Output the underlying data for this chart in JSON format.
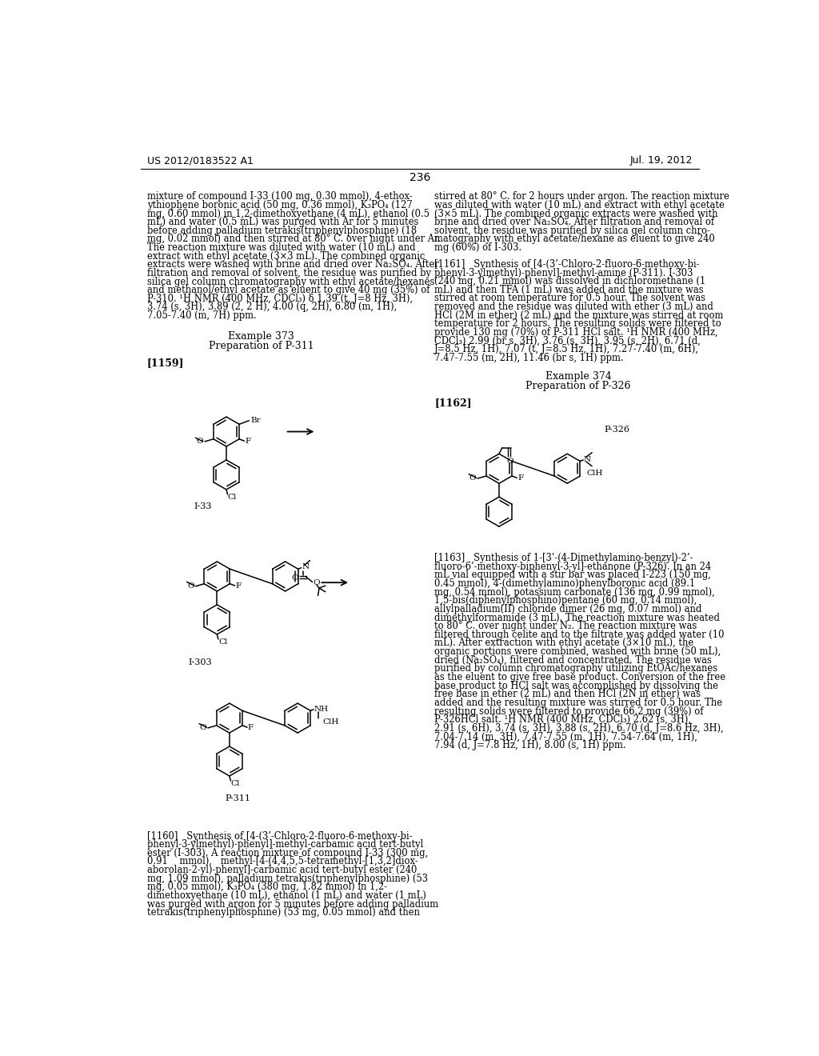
{
  "background_color": "#ffffff",
  "page_number": "236",
  "header_left": "US 2012/0183522 A1",
  "header_right": "Jul. 19, 2012",
  "left_col_text": [
    "mixture of compound I-33 (100 mg, 0.30 mmol), 4-ethox-",
    "ythiophene boronic acid (50 mg, 0.36 mmol), K₃PO₄ (127",
    "mg, 0.60 mmol) in 1,2-dimethoxyethane (4 mL), ethanol (0.5",
    "mL) and water (0.5 mL) was purged with Ar for 5 minutes",
    "before adding palladium tetrakis(triphenylphosphine) (18",
    "mg, 0.02 mmol) and then stirred at 80° C. over night under Ar.",
    "The reaction mixture was diluted with water (10 mL) and",
    "extract with ethyl acetate (3×3 mL). The combined organic",
    "extracts were washed with brine and dried over Na₂SO₄. After",
    "filtration and removal of solvent, the residue was purified by",
    "silica gel column chromatography with ethyl acetate/hexanes",
    "and methanol/ethyl acetate as eluent to give 40 mg (35%) of",
    "P-310. ¹H NMR (400 MHz, CDCl₃) δ 1.39 (t, J=8 Hz, 3H),",
    "3.74 (s, 3H), 3.89 (2, 2 H), 4.00 (q, 2H), 6.80 (m, 1H),",
    "7.05-7.40 (m, 7H) ppm."
  ],
  "example373_header": "Example 373",
  "example373_sub": "Preparation of P-311",
  "para1159": "[1159]",
  "right_col_text": [
    "stirred at 80° C. for 2 hours under argon. The reaction mixture",
    "was diluted with water (10 mL) and extract with ethyl acetate",
    "(3×5 mL). The combined organic extracts were washed with",
    "brine and dried over Na₂SO₄. After filtration and removal of",
    "solvent, the residue was purified by silica gel column chro-",
    "matography with ethyl acetate/hexane as eluent to give 240",
    "mg (60%) of I-303."
  ],
  "para1161_text": [
    "[1161]   Synthesis of [4-(3’-Chloro-2-fluoro-6-methoxy-bi-",
    "phenyl-3-ylmethyl)-phenyl]-methyl-amine (P-311). I-303",
    "(240 mg, 0.21 mmol) was dissolved in dichloromethane (1",
    "mL) and then TFA (1 mL) was added and the mixture was",
    "stirred at room temperature for 0.5 hour. The solvent was",
    "removed and the residue was diluted with ether (3 mL) and",
    "HCl (2M in ether) (2 mL) and the mixture was stirred at room",
    "temperature for 2 hours. The resulting solids were filtered to",
    "provide 130 mg (70%) of P-311 HCl salt. ¹H NMR (400 MHz,",
    "CDCl₃) 2.99 (br s, 3H), 3.76 (s, 3H), 3.95 (s, 2H), 6.71 (d,",
    "J=8.5 Hz, 1H), 7.07 (t, J=8.5 Hz, 1H), 7.27-7.40 (m, 6H),",
    "7.47-7.55 (m, 2H), 11.46 (br s, 1H) ppm."
  ],
  "example374_header": "Example 374",
  "example374_sub": "Preparation of P-326",
  "para1162": "[1162]",
  "para1163_text": [
    "[1163]   Synthesis of 1-[3’-(4-Dimethylamino-benzyl)-2’-",
    "fluoro-6’-methoxy-biphenyl-3-yl]-ethanone (P-326). In an 24",
    "mL vial equipped with a stir bar was placed I-223 (150 mg,",
    "0.45 mmol), 4-(dimethylamino)phenylboronic acid (89.1",
    "mg, 0.54 mmol), potassium carbonate (136 mg, 0.99 mmol),",
    "1,5-bis(diphenylphosphino)pentane (60 mg, 0.14 mmol),",
    "allylpalladium(II) chloride dimer (26 mg, 0.07 mmol) and",
    "dimethylformamide (3 mL). The reaction mixture was heated",
    "to 80° C. over night under N₂. The reaction mixture was",
    "filtered through celite and to the filtrate was added water (10",
    "mL). After extraction with ethyl acetate (3×10 mL), the",
    "organic portions were combined, washed with brine (50 mL),",
    "dried (Na₂SO₄), filtered and concentrated. The residue was",
    "purified by column chromatography utilizing EtOAc/hexanes",
    "as the eluent to give free base product. Conversion of the free",
    "base product to HCl salt was accomplished by dissolving the",
    "free base in ether (2 mL) and then HCl (2N in ether) was",
    "added and the resulting mixture was stirred for 0.5 hour. The",
    "resulting solids were filtered to provide 66.2 mg (39%) of",
    "P-326HCl salt. ¹H NMR (400 MHz, CDCl₃) 2.62 (s, 3H),",
    "2.91 (s, 6H), 3.74 (s, 3H), 3.88 (s, 2H), 6.70 (d, J=8.6 Hz, 3H),",
    "7.04-7.14 (m, 3H), 7.47-7.55 (m, 1H), 7.54-7.64 (m, 1H),",
    "7.94 (d, J=7.8 Hz, 1H), 8.00 (s, 1H) ppm."
  ],
  "para1160_text": [
    "[1160]   Synthesis of [4-(3’-Chloro-2-fluoro-6-methoxy-bi-",
    "phenyl-3-ylmethyl)-phenyl]-methyl-carbamic acid tert-butyl",
    "ester (I-303). A reaction mixture of compound I-33 (300 mg,",
    "0.91    mmol),   methyl-[4-(4,4,5,5-tetramethyl-[1,3,2]diox-",
    "aborolan-2-yl)-phenyl]-carbamic acid tert-butyl ester (240",
    "mg, 1.09 mmol), palladium tetrakis(triphenylphosphine) (53",
    "mg, 0.05 mmol), K₃PO₄ (380 mg, 1.82 mmol) in 1,2-",
    "dimethoxyethane (10 mL), ethanol (1 mL) and water (1 mL)",
    "was purged with argon for 5 minutes before adding palladium",
    "tetrakis(triphenylphosphine) (53 mg, 0.05 mmol) and then"
  ]
}
